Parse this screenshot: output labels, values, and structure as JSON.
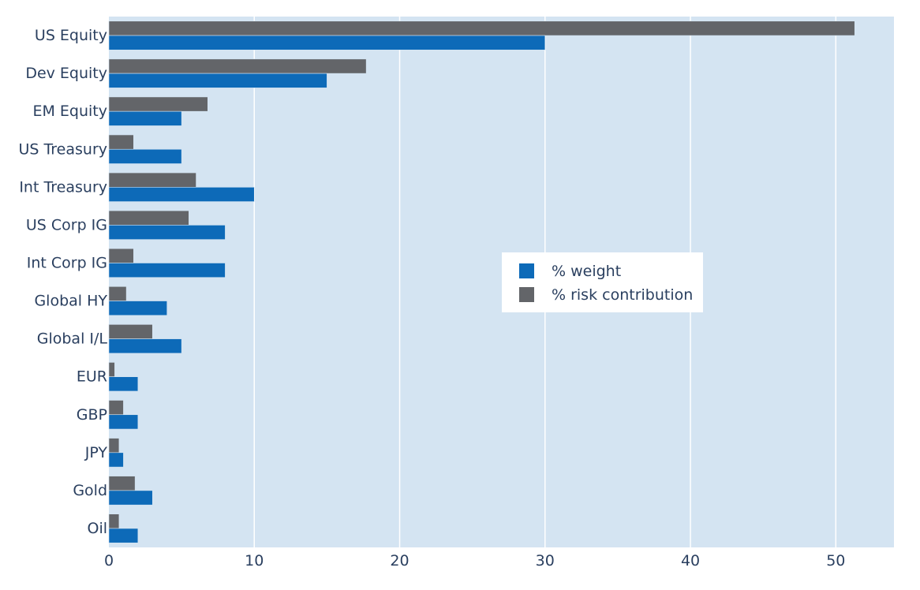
{
  "chart_data": {
    "type": "bar",
    "orientation": "horizontal",
    "categories": [
      "US Equity",
      "Dev Equity",
      "EM Equity",
      "US Treasury",
      "Int Treasury",
      "US Corp IG",
      "Int Corp IG",
      "Global HY",
      "Global I/L",
      "EUR",
      "GBP",
      "JPY",
      "Gold",
      "Oil"
    ],
    "series": [
      {
        "name": "% weight",
        "color": "#0d6ab8",
        "values": [
          30,
          15,
          5,
          5,
          10,
          8,
          8,
          4,
          5,
          2,
          2,
          1,
          3,
          2
        ]
      },
      {
        "name": "% risk contribution",
        "color": "#636569",
        "values": [
          51.3,
          17.7,
          6.8,
          1.7,
          6.0,
          5.5,
          1.7,
          1.2,
          3.0,
          0.4,
          1.0,
          0.7,
          1.8,
          0.7
        ]
      }
    ],
    "xlim": [
      0,
      54
    ],
    "xticks": [
      0,
      10,
      20,
      30,
      40,
      50
    ],
    "title": "",
    "xlabel": "",
    "ylabel": "",
    "grid": true,
    "legend_position": "center-right",
    "plot_background": "#d4e4f2",
    "grid_color": "#ffffff"
  }
}
